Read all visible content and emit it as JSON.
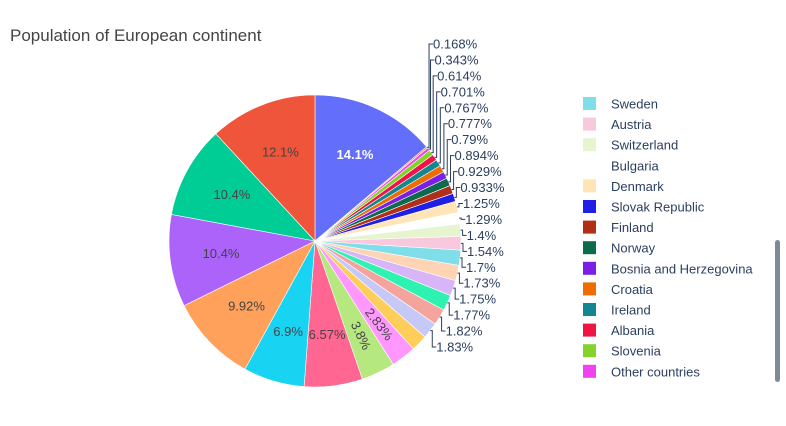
{
  "chart_data": {
    "type": "pie",
    "title": "Population of European continent",
    "legend_position": "right",
    "visible_legend_entries": [
      {
        "name": "Sweden",
        "color": "#80deea"
      },
      {
        "name": "Austria",
        "color": "#f8c8dc"
      },
      {
        "name": "Switzerland",
        "color": "#e6f5d0"
      },
      {
        "name": "Bulgaria",
        "color": "#ffffff"
      },
      {
        "name": "Denmark",
        "color": "#ffe4b5"
      },
      {
        "name": "Slovak Republic",
        "color": "#1f1fe6"
      },
      {
        "name": "Finland",
        "color": "#b22f17"
      },
      {
        "name": "Norway",
        "color": "#0b6b4c"
      },
      {
        "name": "Bosnia and Herzegovina",
        "color": "#7b1fe6"
      },
      {
        "name": "Croatia",
        "color": "#ef6c00"
      },
      {
        "name": "Ireland",
        "color": "#13878f"
      },
      {
        "name": "Albania",
        "color": "#f01446"
      },
      {
        "name": "Slovenia",
        "color": "#84d22a"
      },
      {
        "name": "Other countries",
        "color": "#f043f0"
      }
    ],
    "slices": [
      {
        "label": "14.1%",
        "value": 14.1,
        "color": "#636efa",
        "text_color": "#ffffff",
        "bold": true
      },
      {
        "label": "0.168%",
        "value": 0.168,
        "color": "#f57c3a",
        "outside": true
      },
      {
        "label": "0.343%",
        "value": 0.343,
        "color": "#f043f0",
        "outside": true
      },
      {
        "label": "0.614%",
        "value": 0.614,
        "color": "#84d22a",
        "outside": true
      },
      {
        "label": "0.701%",
        "value": 0.701,
        "color": "#f01446",
        "outside": true
      },
      {
        "label": "0.767%",
        "value": 0.767,
        "color": "#13878f",
        "outside": true
      },
      {
        "label": "0.777%",
        "value": 0.777,
        "color": "#ef6c00",
        "outside": true
      },
      {
        "label": "0.79%",
        "value": 0.79,
        "color": "#7b1fe6",
        "outside": true
      },
      {
        "label": "0.894%",
        "value": 0.894,
        "color": "#0b6b4c",
        "outside": true
      },
      {
        "label": "0.929%",
        "value": 0.929,
        "color": "#b22f17",
        "outside": true
      },
      {
        "label": "0.933%",
        "value": 0.933,
        "color": "#1f1fe6",
        "outside": true
      },
      {
        "label": "1.25%",
        "value": 1.25,
        "color": "#ffe4b5",
        "outside": true
      },
      {
        "label": "1.29%",
        "value": 1.29,
        "color": "#ffffff",
        "outside": true
      },
      {
        "label": "1.4%",
        "value": 1.4,
        "color": "#e6f5d0",
        "outside": true
      },
      {
        "label": "1.54%",
        "value": 1.54,
        "color": "#f8c8dc",
        "outside": true
      },
      {
        "label": "1.7%",
        "value": 1.7,
        "color": "#80deea",
        "outside": true
      },
      {
        "label": "1.73%",
        "value": 1.73,
        "color": "#fed4b4",
        "outside": true
      },
      {
        "label": "1.75%",
        "value": 1.75,
        "color": "#dab4f8",
        "outside": true
      },
      {
        "label": "1.77%",
        "value": 1.77,
        "color": "#2ef2b0",
        "outside": true
      },
      {
        "label": "1.82%",
        "value": 1.82,
        "color": "#f5a39d",
        "outside": true
      },
      {
        "label": "1.83%",
        "value": 1.83,
        "color": "#c6c8f8",
        "outside": true
      },
      {
        "label": "",
        "value": 1.85,
        "color": "#ffcd5a"
      },
      {
        "label": "2.83%",
        "value": 2.83,
        "color": "#ff97ff",
        "text_color": "#444444"
      },
      {
        "label": "3.8%",
        "value": 3.8,
        "color": "#b6e880",
        "text_color": "#444444"
      },
      {
        "label": "6.57%",
        "value": 6.57,
        "color": "#ff6692",
        "text_color": "#444444"
      },
      {
        "label": "6.9%",
        "value": 6.9,
        "color": "#19d3f3",
        "text_color": "#444444"
      },
      {
        "label": "9.92%",
        "value": 9.92,
        "color": "#ffa15a",
        "text_color": "#444444"
      },
      {
        "label": "10.4%",
        "value": 10.4,
        "color": "#ab63fa",
        "text_color": "#444444"
      },
      {
        "label": "10.4%",
        "value": 10.4,
        "color": "#00cc96",
        "text_color": "#444444"
      },
      {
        "label": "12.1%",
        "value": 12.1,
        "color": "#ef553b",
        "text_color": "#444444"
      }
    ]
  }
}
